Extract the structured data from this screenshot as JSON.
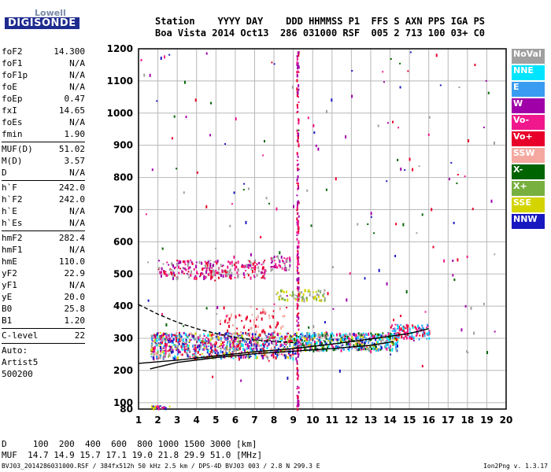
{
  "logo": {
    "line1": "Lowell",
    "line2": "DIGISONDE"
  },
  "header": {
    "line1": "Station    YYYY DAY    DDD HHMMSS P1  FFS S AXN PPS IGA PS",
    "line2": "Boa Vista 2014 Oct13  286 031000 RSF  005 2 713 100 03+ C0"
  },
  "params": [
    {
      "k": "foF2",
      "v": "14.300"
    },
    {
      "k": "foF1",
      "v": "N/A"
    },
    {
      "k": "foF1p",
      "v": "N/A"
    },
    {
      "k": "foE",
      "v": "N/A"
    },
    {
      "k": "foEp",
      "v": "0.47"
    },
    {
      "k": "fxI",
      "v": "14.65"
    },
    {
      "k": "foEs",
      "v": "N/A"
    },
    {
      "k": "fmin",
      "v": "1.90"
    },
    {
      "sep": true
    },
    {
      "k": "MUF(D)",
      "v": "51.02"
    },
    {
      "k": "M(D)",
      "v": "3.57"
    },
    {
      "k": "D",
      "v": "N/A"
    },
    {
      "sep": true
    },
    {
      "k": "h`F",
      "v": "242.0"
    },
    {
      "k": "h`F2",
      "v": "242.0"
    },
    {
      "k": "h`E",
      "v": "N/A"
    },
    {
      "k": "h`Es",
      "v": "N/A"
    },
    {
      "sep": true
    },
    {
      "k": "hmF2",
      "v": "282.4"
    },
    {
      "k": "hmF1",
      "v": "N/A"
    },
    {
      "k": "hmE",
      "v": "110.0"
    },
    {
      "k": "yF2",
      "v": "22.9"
    },
    {
      "k": "yF1",
      "v": "N/A"
    },
    {
      "k": "yE",
      "v": "20.0"
    },
    {
      "k": "B0",
      "v": "25.8"
    },
    {
      "k": "B1",
      "v": "1.20"
    },
    {
      "sep": true
    },
    {
      "k": "C-level",
      "v": "22"
    },
    {
      "sep": true
    },
    {
      "k": "Auto:",
      "v": ""
    },
    {
      "k": "Artist5",
      "v": ""
    },
    {
      "k": "500200",
      "v": ""
    }
  ],
  "legend": [
    {
      "label": "NoVal",
      "color": "#a0a0a0"
    },
    {
      "label": "NNE",
      "color": "#00e5ff"
    },
    {
      "label": "E",
      "color": "#3a9cf0"
    },
    {
      "label": "W",
      "color": "#a000a8"
    },
    {
      "label": "Vo-",
      "color": "#f0188c"
    },
    {
      "label": "Vo+",
      "color": "#e8002a"
    },
    {
      "label": "SSW",
      "color": "#f4a8a0"
    },
    {
      "label": "X-",
      "color": "#006400"
    },
    {
      "label": "X+",
      "color": "#78b040"
    },
    {
      "label": "SSE",
      "color": "#d4d400"
    },
    {
      "label": "NNW",
      "color": "#1818c0"
    }
  ],
  "footer": {
    "line1": "D     100  200  400  600  800 1000 1500 3000 [km]",
    "line2": "MUF  14.7 14.9 15.7 17.1 19.0 21.8 29.9 51.0 [MHz]",
    "line3": "BVJ03_2014286031000.RSF / 384fx512h 50 kHz 2.5 km / DPS-4D BVJ03 003 / 2.8 N 299.3 E",
    "version": "Ion2Png v. 1.3.17"
  },
  "chart_data": {
    "type": "scatter",
    "xlim": [
      1,
      20
    ],
    "ylim": [
      80,
      1200
    ],
    "x_ticks": [
      1,
      2,
      3,
      4,
      5,
      6,
      7,
      8,
      9,
      10,
      11,
      12,
      13,
      14,
      15,
      16,
      17,
      18,
      19,
      20
    ],
    "y_ticks": [
      80,
      100,
      200,
      300,
      400,
      500,
      600,
      700,
      800,
      900,
      1000,
      1100,
      1200
    ],
    "grid": true,
    "traces": [
      {
        "name": "O-trace",
        "points": [
          [
            1.6,
            205
          ],
          [
            3,
            225
          ],
          [
            5,
            240
          ],
          [
            7,
            252
          ],
          [
            9,
            260
          ],
          [
            11,
            268
          ],
          [
            13,
            278
          ],
          [
            14.2,
            290
          ]
        ]
      },
      {
        "name": "trace-upper",
        "points": [
          [
            1,
            222
          ],
          [
            3,
            232
          ],
          [
            5,
            245
          ],
          [
            7,
            258
          ],
          [
            9,
            268
          ],
          [
            11,
            282
          ],
          [
            13,
            298
          ],
          [
            15,
            315
          ],
          [
            16,
            330
          ]
        ]
      },
      {
        "name": "dashed",
        "points": [
          [
            1,
            405
          ],
          [
            2,
            375
          ],
          [
            3,
            350
          ],
          [
            4,
            330
          ],
          [
            5,
            315
          ],
          [
            6,
            303
          ],
          [
            7,
            295
          ],
          [
            8,
            290
          ],
          [
            9,
            287
          ]
        ]
      }
    ],
    "clusters": [
      {
        "x": [
          2,
          7.6
        ],
        "y": [
          490,
          545
        ],
        "n": 260,
        "colors": [
          "#f0188c",
          "#e8002a",
          "#a000a8",
          "#a0a0a0"
        ]
      },
      {
        "x": [
          7.8,
          8.8
        ],
        "y": [
          515,
          560
        ],
        "n": 50,
        "colors": [
          "#f0188c",
          "#a0a0a0",
          "#a000a8"
        ]
      },
      {
        "x": [
          8,
          10.6
        ],
        "y": [
          420,
          455
        ],
        "n": 70,
        "colors": [
          "#d4d400",
          "#a0a0a0",
          "#78b040"
        ]
      },
      {
        "x": [
          1.6,
          9.2
        ],
        "y": [
          240,
          320
        ],
        "n": 900,
        "colors": [
          "#f0188c",
          "#e8002a",
          "#a000a8",
          "#a0a0a0",
          "#3a9cf0",
          "#f4a8a0",
          "#d4d400",
          "#78b040",
          "#1818c0",
          "#00e5ff"
        ]
      },
      {
        "x": [
          9,
          14.4
        ],
        "y": [
          265,
          320
        ],
        "n": 500,
        "colors": [
          "#3a9cf0",
          "#00e5ff",
          "#a0a0a0",
          "#f0188c",
          "#d4d400",
          "#1818c0",
          "#006400"
        ]
      },
      {
        "x": [
          14,
          16
        ],
        "y": [
          300,
          345
        ],
        "n": 120,
        "colors": [
          "#e8002a",
          "#f0188c",
          "#00e5ff",
          "#3a9cf0"
        ]
      },
      {
        "x": [
          5,
          8.5
        ],
        "y": [
          320,
          400
        ],
        "n": 70,
        "colors": [
          "#f4a8a0",
          "#e8002a"
        ]
      },
      {
        "x": [
          1,
          20
        ],
        "y": [
          150,
          1200
        ],
        "n": 170,
        "colors": [
          "#e8002a",
          "#a000a8",
          "#a0a0a0",
          "#006400",
          "#1818c0",
          "#f0188c"
        ]
      },
      {
        "x": [
          1.6,
          2.6
        ],
        "y": [
          86,
          92
        ],
        "n": 30,
        "colors": [
          "#d4d400",
          "#1818c0",
          "#f0188c"
        ]
      },
      {
        "x": [
          9.15,
          9.25
        ],
        "y": [
          80,
          1195
        ],
        "n": 200,
        "colors": [
          "#f0188c",
          "#a000a8",
          "#e8002a"
        ]
      }
    ]
  }
}
